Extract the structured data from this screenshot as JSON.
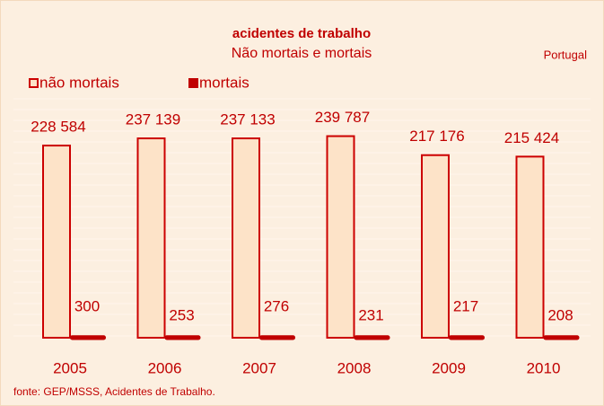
{
  "chart_data": {
    "type": "bar",
    "title": "acidentes de trabalho",
    "subtitle": "Não mortais e mortais",
    "annotation": "Portugal",
    "source": "fonte: GEP/MSSS, Acidentes de Trabalho.",
    "categories": [
      "2005",
      "2006",
      "2007",
      "2008",
      "2009",
      "2010"
    ],
    "series": [
      {
        "name": "não mortais",
        "color": "#fde3c8",
        "stroke": "#cc0000",
        "values": [
          228584,
          237139,
          237133,
          239787,
          217176,
          215424
        ],
        "value_labels": [
          "228 584",
          "237 139",
          "237 133",
          "239 787",
          "217 176",
          "215 424"
        ]
      },
      {
        "name": "mortais",
        "color": "#c00000",
        "values": [
          300,
          253,
          276,
          231,
          217,
          208
        ]
      }
    ],
    "ylim": [
      0,
      250000
    ],
    "legend": "top-left"
  }
}
